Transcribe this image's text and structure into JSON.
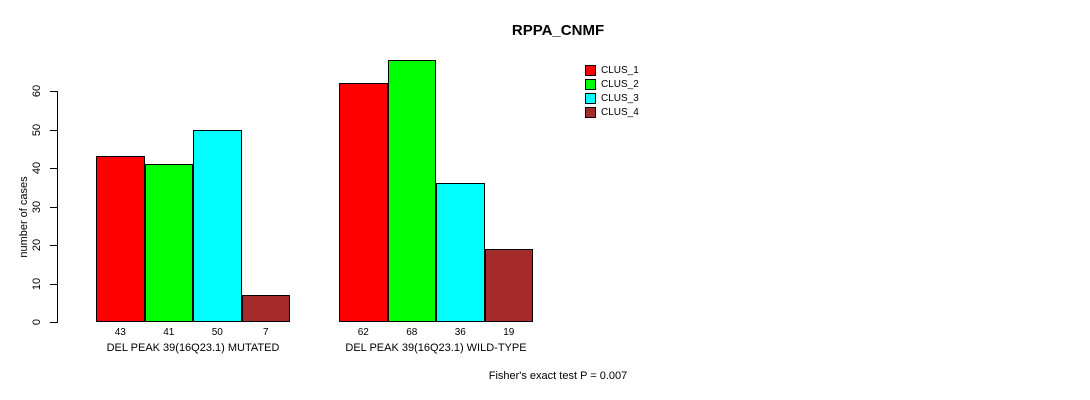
{
  "title": "RPPA_CNMF",
  "y_axis": {
    "label": "number of cases"
  },
  "footer": "Fisher's exact test P = 0.007",
  "chart_data": {
    "type": "bar",
    "title": "RPPA_CNMF",
    "xlabel": "",
    "ylabel": "number of cases",
    "ylim": [
      0,
      60
    ],
    "yticks": [
      0,
      10,
      20,
      30,
      40,
      50,
      60
    ],
    "grid": false,
    "legend_position": "top-right",
    "categories": [
      "DEL PEAK 39(16Q23.1) MUTATED",
      "DEL PEAK 39(16Q23.1) WILD-TYPE"
    ],
    "series": [
      {
        "name": "CLUS_1",
        "color": "#FF0000",
        "values": [
          43,
          62
        ]
      },
      {
        "name": "CLUS_2",
        "color": "#00FF00",
        "values": [
          41,
          68
        ]
      },
      {
        "name": "CLUS_3",
        "color": "#00FFFF",
        "values": [
          50,
          36
        ]
      },
      {
        "name": "CLUS_4",
        "color": "#A52A2A",
        "values": [
          7,
          19
        ]
      }
    ],
    "value_labels": [
      [
        43,
        41,
        50,
        7
      ],
      [
        62,
        68,
        36,
        19
      ]
    ],
    "annotation": "Fisher's exact test P = 0.007"
  }
}
